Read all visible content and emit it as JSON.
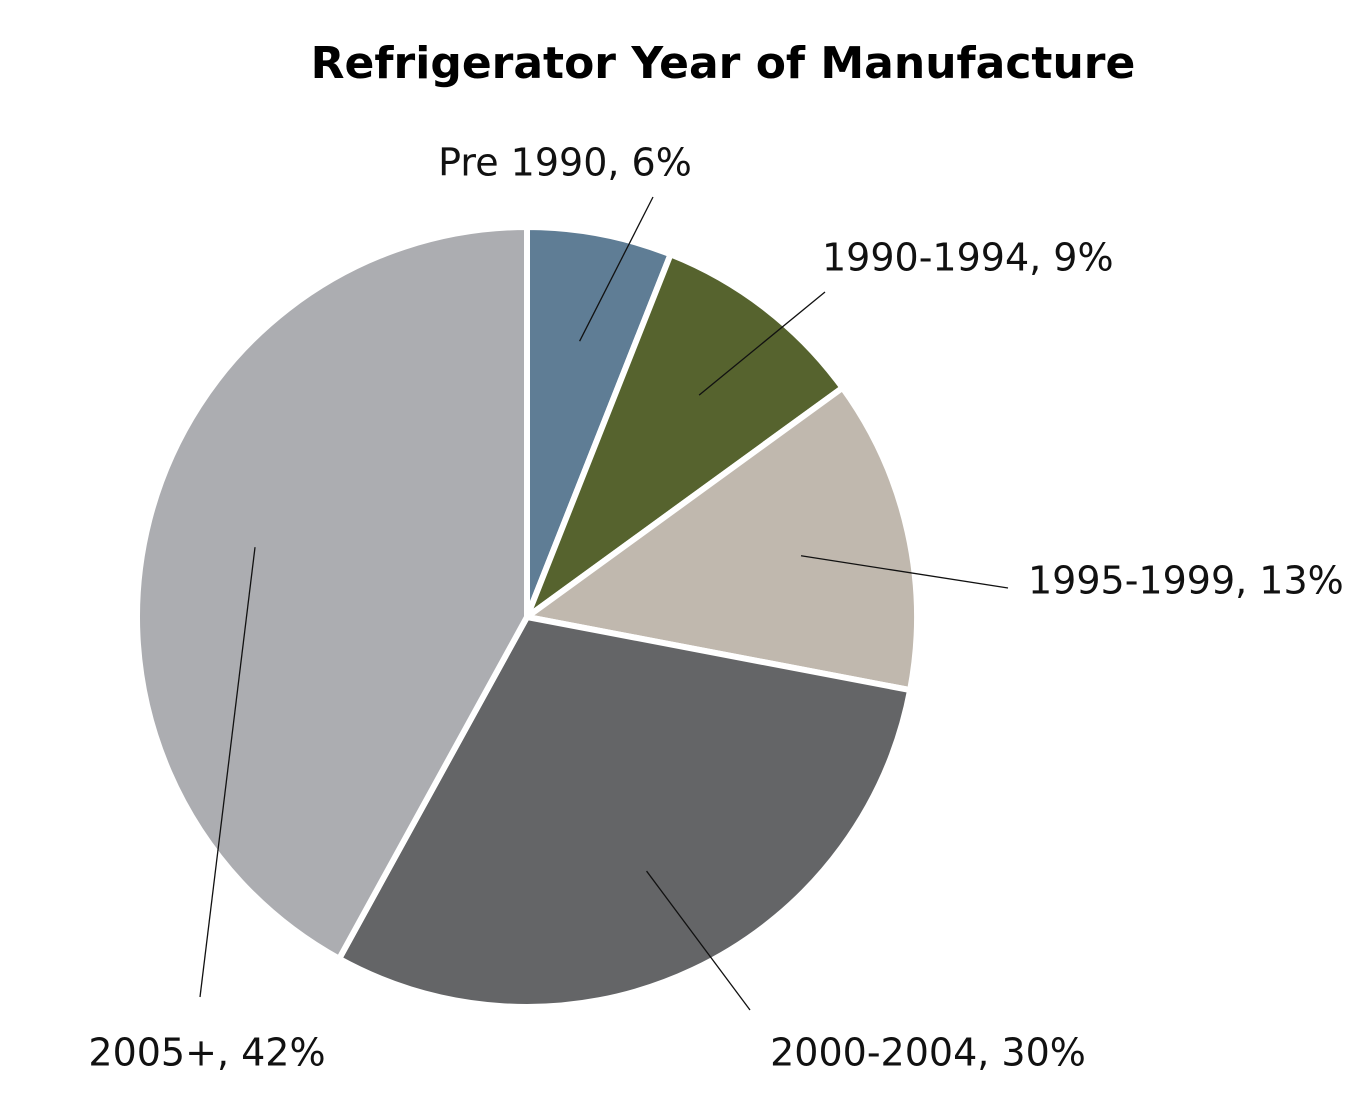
{
  "chart_data": {
    "type": "pie",
    "title": "Refrigerator Year of Manufacture",
    "values": [
      6,
      9,
      13,
      30,
      42
    ],
    "value_labels": [
      "Pre 1990, 6%",
      "1990-1994, 9%",
      "1995-1999, 13%",
      "2000-2004, 30%",
      "2005+, 42%"
    ],
    "colors": [
      "#5f7d95",
      "#56632e",
      "#c0b8ae",
      "#646567",
      "#acadb1"
    ]
  }
}
